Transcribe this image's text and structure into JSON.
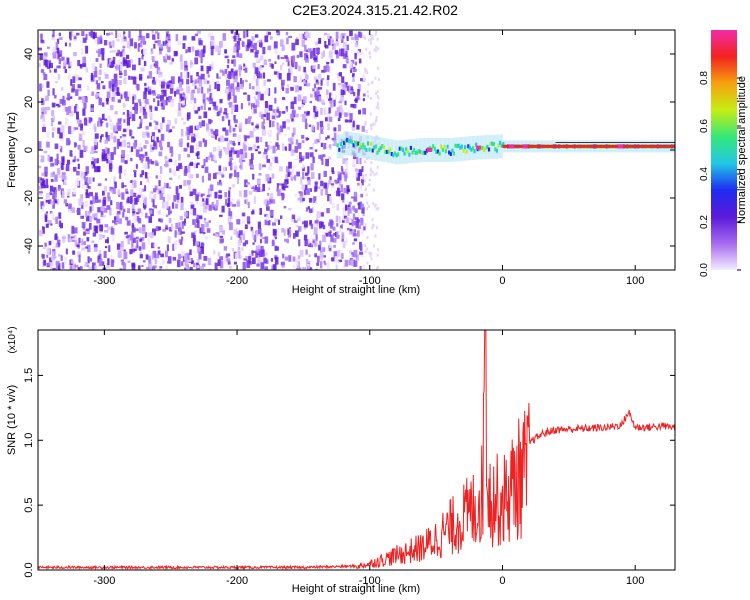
{
  "title": "C2E3.2024.315.21.42.R02",
  "chart_data": [
    {
      "type": "heatmap",
      "xlabel": "Height of straight line (km)",
      "ylabel": "Frequency (Hz)",
      "xlim": [
        -350,
        130
      ],
      "ylim": [
        -50,
        50
      ],
      "xticks": [
        -300,
        -200,
        -100,
        0,
        100
      ],
      "yticks": [
        -40,
        -20,
        0,
        20,
        40
      ],
      "colorbar": {
        "label": "Normalized spectral amplitude",
        "range": [
          0,
          1
        ],
        "ticks": [
          "0.0",
          "0.2",
          "0.4",
          "0.6",
          "0.8"
        ],
        "colors": [
          "#f4ecff",
          "#a56af0",
          "#5a19d8",
          "#1d2cf0",
          "#22c8e6",
          "#35e878",
          "#c6ee14",
          "#f7a10e",
          "#f2231f",
          "#f42aa9"
        ]
      },
      "noise_region_x": [
        -350,
        -105
      ],
      "signal_track": [
        {
          "x": -120,
          "f": 3
        },
        {
          "x": -100,
          "f": 1
        },
        {
          "x": -80,
          "f": -1
        },
        {
          "x": -60,
          "f": 0
        },
        {
          "x": -40,
          "f": 0
        },
        {
          "x": -20,
          "f": 1
        },
        {
          "x": 0,
          "f": 1.5
        },
        {
          "x": 50,
          "f": 1.5
        },
        {
          "x": 100,
          "f": 1.5
        },
        {
          "x": 130,
          "f": 1.5
        }
      ]
    },
    {
      "type": "line",
      "xlabel": "Height of straight line (km)",
      "ylabel": "SNR (10 * v/v)",
      "yunit_exponent": "(x10⁴)",
      "xlim": [
        -350,
        130
      ],
      "ylim": [
        0,
        1.85
      ],
      "xticks": [
        -300,
        -200,
        -100,
        0,
        100
      ],
      "yticks": [
        "0.0",
        "0.5",
        "1.0",
        "1.5"
      ],
      "series": [
        {
          "color": "#ee2222",
          "x": [
            -350,
            -300,
            -250,
            -200,
            -150,
            -110,
            -100,
            -90,
            -80,
            -70,
            -60,
            -50,
            -40,
            -30,
            -20,
            -15,
            -13,
            -10,
            0,
            10,
            20,
            30,
            40,
            60,
            80,
            90,
            95,
            100,
            110,
            120,
            130
          ],
          "y": [
            0.02,
            0.02,
            0.02,
            0.02,
            0.02,
            0.03,
            0.06,
            0.1,
            0.14,
            0.18,
            0.22,
            0.3,
            0.4,
            0.5,
            0.6,
            0.75,
            1.85,
            0.7,
            0.65,
            0.85,
            0.98,
            1.05,
            1.08,
            1.09,
            1.1,
            1.12,
            1.22,
            1.1,
            1.1,
            1.11,
            1.1
          ]
        }
      ]
    }
  ]
}
